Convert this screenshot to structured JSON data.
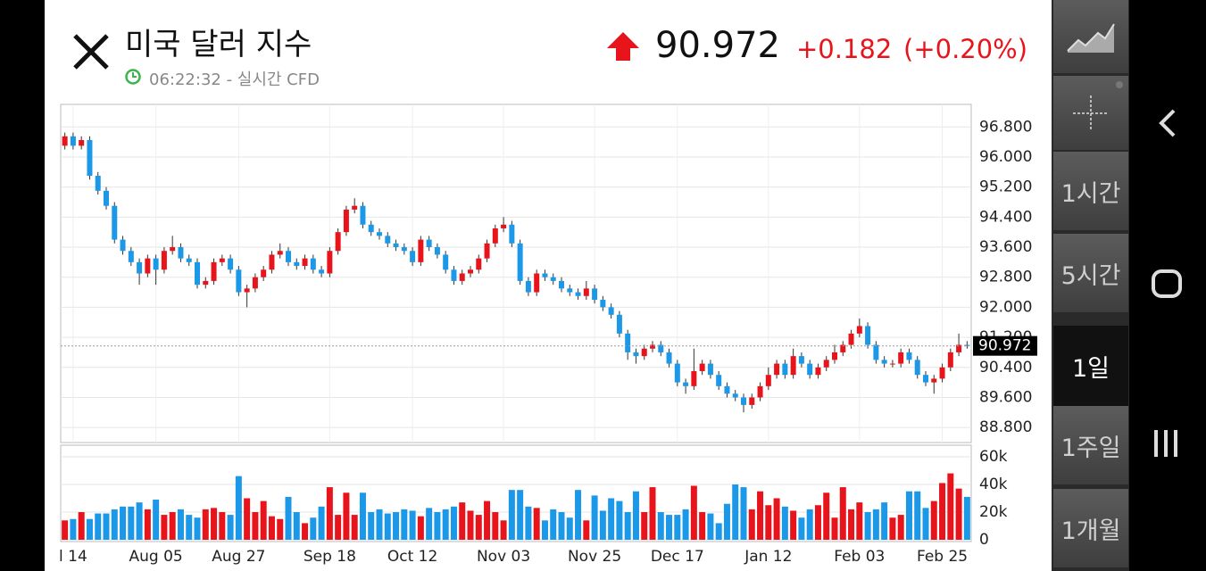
{
  "header": {
    "title": "미국 달러 지수",
    "time": "06:22:32 - 실시간 CFD",
    "price": "90.972",
    "change": "+0.182",
    "change_pct": "(+0.20%)"
  },
  "side_buttons": [
    "1시간",
    "5시간",
    "1일",
    "1주일",
    "1개월"
  ],
  "chart_data": {
    "type": "candlestick",
    "grid": true,
    "up_color": "#e8141c",
    "down_color": "#1c98e8",
    "xlim": [
      -0.5,
      109.5
    ],
    "xticks": [
      {
        "value": 1,
        "label": "l 14"
      },
      {
        "value": 11,
        "label": "Aug 05"
      },
      {
        "value": 21,
        "label": "Aug 27"
      },
      {
        "value": 32,
        "label": "Sep 18"
      },
      {
        "value": 42,
        "label": "Oct 12"
      },
      {
        "value": 53,
        "label": "Nov 03"
      },
      {
        "value": 64,
        "label": "Nov 25"
      },
      {
        "value": 74,
        "label": "Dec 17"
      },
      {
        "value": 85,
        "label": "Jan 12"
      },
      {
        "value": 96,
        "label": "Feb 03"
      },
      {
        "value": 106,
        "label": "Feb 25"
      }
    ],
    "ylim": [
      88.4,
      97.4
    ],
    "yticks": [
      {
        "value": 88.8,
        "label": "88.800"
      },
      {
        "value": 89.6,
        "label": "89.600"
      },
      {
        "value": 90.4,
        "label": "90.400"
      },
      {
        "value": 91.2,
        "label": "91.200"
      },
      {
        "value": 92,
        "label": "92.000"
      },
      {
        "value": 92.8,
        "label": "92.800"
      },
      {
        "value": 93.6,
        "label": "93.600"
      },
      {
        "value": 94.4,
        "label": "94.400"
      },
      {
        "value": 95.2,
        "label": "95.200"
      },
      {
        "value": 96,
        "label": "96.000"
      },
      {
        "value": 96.8,
        "label": "96.800"
      }
    ],
    "last_price": 90.972,
    "open": [
      96.3,
      96.55,
      96.3,
      96.45,
      95.5,
      95.1,
      94.7,
      93.8,
      93.5,
      93.2,
      92.9,
      93.3,
      93.0,
      93.5,
      93.6,
      93.3,
      93.2,
      92.6,
      92.7,
      93.2,
      93.3,
      93.0,
      92.4,
      92.5,
      92.8,
      93.0,
      93.4,
      93.5,
      93.2,
      93.1,
      93.3,
      93.0,
      92.9,
      93.5,
      94.0,
      94.6,
      94.7,
      94.2,
      94.0,
      93.9,
      93.7,
      93.6,
      93.5,
      93.2,
      93.8,
      93.6,
      93.4,
      93.0,
      92.7,
      92.9,
      93.0,
      93.3,
      93.7,
      94.1,
      94.2,
      93.7,
      92.7,
      92.4,
      92.9,
      92.8,
      92.7,
      92.5,
      92.4,
      92.3,
      92.5,
      92.2,
      92.0,
      91.8,
      91.3,
      90.8,
      90.7,
      90.9,
      91.0,
      90.8,
      90.5,
      90.0,
      89.9,
      90.3,
      90.5,
      90.2,
      89.9,
      89.7,
      89.6,
      89.4,
      89.6,
      89.9,
      90.2,
      90.5,
      90.2,
      90.7,
      90.5,
      90.2,
      90.4,
      90.6,
      90.8,
      91.0,
      91.3,
      91.5,
      91.0,
      90.6,
      90.5,
      90.5,
      90.8,
      90.6,
      90.2,
      90.0,
      90.1,
      90.4,
      90.8,
      91.0
    ],
    "high": [
      96.65,
      96.65,
      96.55,
      96.55,
      95.6,
      95.2,
      94.8,
      93.9,
      93.6,
      93.3,
      93.4,
      93.4,
      93.6,
      93.9,
      93.7,
      93.4,
      93.3,
      92.8,
      93.3,
      93.4,
      93.4,
      93.1,
      92.6,
      92.9,
      93.1,
      93.5,
      93.7,
      93.6,
      93.3,
      93.4,
      93.4,
      93.1,
      93.6,
      94.1,
      94.7,
      94.9,
      94.8,
      94.3,
      94.1,
      94.0,
      93.8,
      93.7,
      93.6,
      93.9,
      93.9,
      93.7,
      93.5,
      93.1,
      93.0,
      93.1,
      93.4,
      93.8,
      94.2,
      94.4,
      94.3,
      93.8,
      92.8,
      93.0,
      93.0,
      92.9,
      92.8,
      92.6,
      92.5,
      92.7,
      92.6,
      92.3,
      92.1,
      91.9,
      91.4,
      90.9,
      91.0,
      91.1,
      91.1,
      90.9,
      90.6,
      90.1,
      90.9,
      90.6,
      90.6,
      90.3,
      90.0,
      89.8,
      89.7,
      89.7,
      90.0,
      90.4,
      90.6,
      90.6,
      90.9,
      90.8,
      90.6,
      90.5,
      90.7,
      91.0,
      91.1,
      91.4,
      91.7,
      91.6,
      91.1,
      90.7,
      90.6,
      90.9,
      90.9,
      90.7,
      90.3,
      90.2,
      90.5,
      90.9,
      91.3,
      91.1
    ],
    "low": [
      96.2,
      96.2,
      96.2,
      95.4,
      95.0,
      94.6,
      93.7,
      93.4,
      93.1,
      92.6,
      92.8,
      92.6,
      92.9,
      93.4,
      93.2,
      93.1,
      92.5,
      92.5,
      92.6,
      93.1,
      92.9,
      92.3,
      92.0,
      92.4,
      92.7,
      92.9,
      93.3,
      93.1,
      93.0,
      93.0,
      92.9,
      92.8,
      92.8,
      93.4,
      93.9,
      94.5,
      94.1,
      93.9,
      93.8,
      93.6,
      93.5,
      93.4,
      93.1,
      93.1,
      93.5,
      93.3,
      92.9,
      92.6,
      92.6,
      92.8,
      92.9,
      93.2,
      93.6,
      94.0,
      93.6,
      92.6,
      92.3,
      92.3,
      92.7,
      92.6,
      92.4,
      92.3,
      92.2,
      92.2,
      92.1,
      91.9,
      91.7,
      91.2,
      90.6,
      90.5,
      90.6,
      90.8,
      90.7,
      90.4,
      89.9,
      89.7,
      89.8,
      90.2,
      90.1,
      89.8,
      89.6,
      89.5,
      89.2,
      89.3,
      89.5,
      89.8,
      90.1,
      90.1,
      90.1,
      90.4,
      90.1,
      90.1,
      90.3,
      90.5,
      90.7,
      90.9,
      91.2,
      90.9,
      90.5,
      90.4,
      90.4,
      90.4,
      90.5,
      90.1,
      89.9,
      89.7,
      90.0,
      90.3,
      90.7,
      90.9
    ],
    "close": [
      96.55,
      96.3,
      96.45,
      95.5,
      95.1,
      94.7,
      93.8,
      93.5,
      93.2,
      92.9,
      93.3,
      93.0,
      93.5,
      93.6,
      93.3,
      93.2,
      92.6,
      92.7,
      93.2,
      93.3,
      93.0,
      92.4,
      92.5,
      92.8,
      93.0,
      93.4,
      93.5,
      93.2,
      93.1,
      93.3,
      93.0,
      92.9,
      93.5,
      94.0,
      94.6,
      94.7,
      94.2,
      94.0,
      93.9,
      93.7,
      93.6,
      93.5,
      93.2,
      93.8,
      93.6,
      93.4,
      93.0,
      92.7,
      92.9,
      93.0,
      93.3,
      93.7,
      94.1,
      94.2,
      93.7,
      92.7,
      92.4,
      92.9,
      92.8,
      92.7,
      92.5,
      92.4,
      92.3,
      92.5,
      92.2,
      92.0,
      91.8,
      91.3,
      90.8,
      90.7,
      90.9,
      91.0,
      90.8,
      90.5,
      90.0,
      89.9,
      90.3,
      90.5,
      90.2,
      89.9,
      89.7,
      89.6,
      89.4,
      89.6,
      89.9,
      90.2,
      90.5,
      90.2,
      90.7,
      90.5,
      90.2,
      90.4,
      90.6,
      90.8,
      91.0,
      91.3,
      91.5,
      91.0,
      90.6,
      90.5,
      90.5,
      90.8,
      90.6,
      90.2,
      90.0,
      90.1,
      90.4,
      90.8,
      91.0,
      90.97
    ],
    "volume": {
      "ylim": [
        0,
        69000
      ],
      "yticks": [
        0,
        {
          "value": 20000,
          "label": "20k"
        },
        {
          "value": 40000,
          "label": "40k"
        },
        {
          "value": 60000,
          "label": "60k"
        }
      ],
      "values": [
        14000,
        15000,
        20000,
        15000,
        19000,
        19000,
        22000,
        24000,
        24000,
        27000,
        22000,
        29000,
        18000,
        20000,
        22000,
        18000,
        16000,
        22000,
        23000,
        20000,
        18000,
        46000,
        30000,
        20000,
        28000,
        17000,
        15000,
        31000,
        20000,
        12000,
        16000,
        24000,
        38000,
        18000,
        34000,
        18000,
        34000,
        20000,
        22000,
        19000,
        20000,
        22000,
        21000,
        17000,
        23000,
        20000,
        22000,
        24000,
        27000,
        21000,
        18000,
        28000,
        20000,
        14000,
        36000,
        36000,
        24000,
        23000,
        14000,
        22000,
        20000,
        16000,
        36000,
        14000,
        32000,
        21000,
        30000,
        28000,
        20000,
        35000,
        20000,
        38000,
        20000,
        18000,
        18000,
        22000,
        39000,
        20000,
        19000,
        12000,
        26000,
        40000,
        38000,
        22000,
        35000,
        25000,
        30000,
        24000,
        21000,
        16000,
        22000,
        25000,
        34000,
        16000,
        38000,
        22000,
        27000,
        20000,
        22000,
        27000,
        16000,
        18000,
        35000,
        35000,
        23000,
        28000,
        41000,
        48000,
        37000,
        31000
      ]
    }
  }
}
